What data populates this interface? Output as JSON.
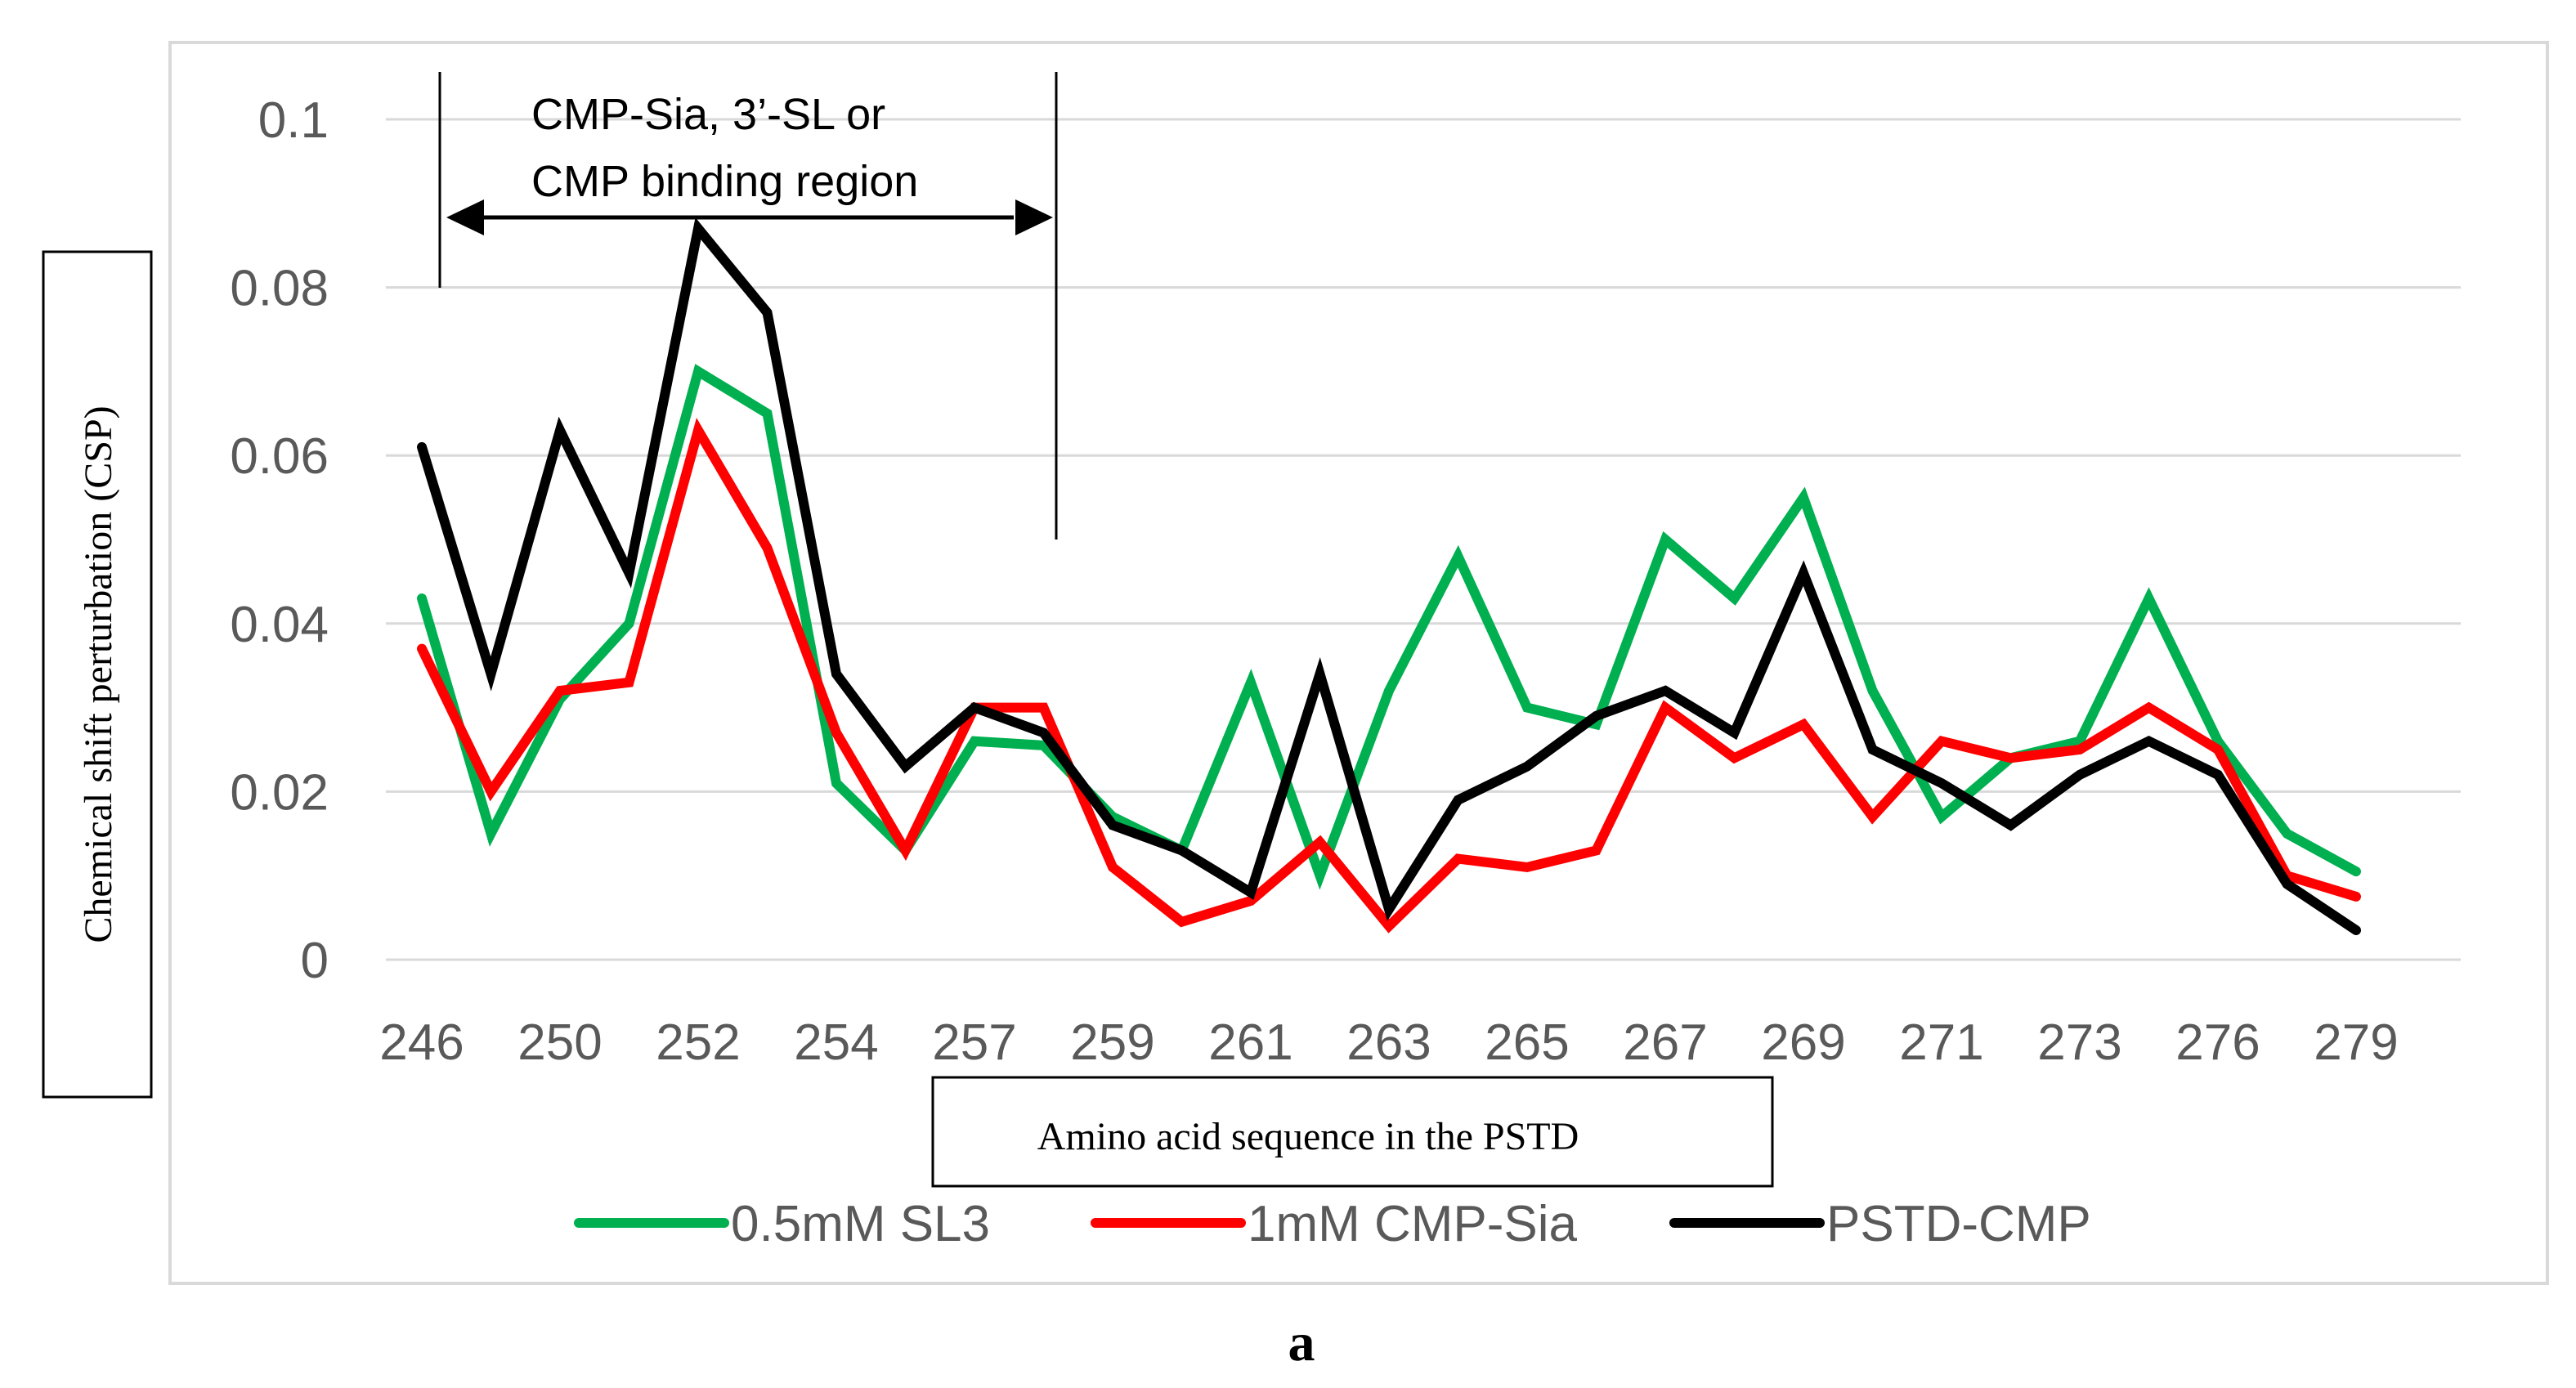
{
  "chart_data": {
    "type": "line",
    "title": "",
    "xlabel": "Amino acid sequence in the PSTD",
    "ylabel": "Chemical shift perturbation (CSP)",
    "ylim": [
      0,
      0.1
    ],
    "y_ticks": [
      "0",
      "0.02",
      "0.04",
      "0.06",
      "0.08",
      "0.1"
    ],
    "x_tick_labels": [
      "246",
      "250",
      "252",
      "254",
      "257",
      "259",
      "261",
      "263",
      "265",
      "267",
      "269",
      "271",
      "273",
      "276",
      "279"
    ],
    "point_count": 30,
    "x_tick_every": 2,
    "grid": true,
    "legend_position": "bottom",
    "series": [
      {
        "name": "0.5mM SL3",
        "color": "#00b050",
        "values": [
          0.043,
          0.015,
          0.031,
          0.04,
          0.07,
          0.065,
          0.021,
          0.013,
          0.026,
          0.0255,
          0.017,
          0.013,
          0.033,
          0.01,
          0.032,
          0.048,
          0.03,
          0.028,
          0.05,
          0.043,
          0.055,
          0.032,
          0.017,
          0.024,
          0.026,
          0.043,
          0.026,
          0.015,
          0.0105,
          null
        ]
      },
      {
        "name": "1mM CMP-Sia",
        "color": "#ff0000",
        "values": [
          0.037,
          0.02,
          0.032,
          0.033,
          0.063,
          0.049,
          0.027,
          0.013,
          0.03,
          0.03,
          0.011,
          0.0045,
          0.007,
          0.014,
          0.004,
          0.012,
          0.011,
          0.013,
          0.03,
          0.024,
          0.028,
          0.017,
          0.026,
          0.024,
          0.025,
          0.03,
          0.025,
          0.01,
          0.0075,
          null
        ]
      },
      {
        "name": "PSTD-CMP",
        "color": "#000000",
        "values": [
          0.061,
          0.034,
          0.063,
          0.046,
          0.087,
          0.077,
          0.034,
          0.023,
          0.03,
          0.027,
          0.016,
          0.013,
          0.008,
          0.034,
          0.006,
          0.019,
          0.023,
          0.029,
          0.032,
          0.027,
          0.046,
          0.025,
          0.021,
          0.016,
          0.022,
          0.026,
          0.022,
          0.009,
          0.0035,
          null
        ]
      }
    ],
    "annotations": {
      "binding_region_line1": "CMP-Sia, 3’-SL or",
      "binding_region_line2": "CMP binding region"
    }
  },
  "figure_label": "a"
}
